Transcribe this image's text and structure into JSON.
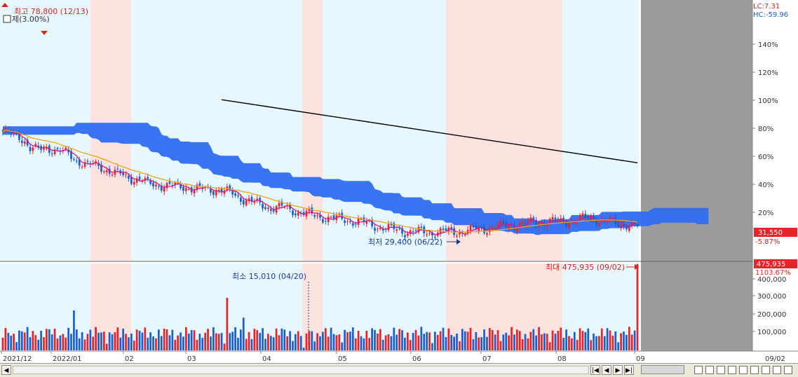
{
  "chart_data": {
    "type": "candlestick",
    "price_scale": "percent",
    "y_ticks_price": [
      "140%",
      "120%",
      "100%",
      "80%",
      "60%",
      "40%",
      "20%"
    ],
    "y_ticks_volume": [
      "400,000",
      "300,000",
      "200,000",
      "100,000"
    ],
    "x_ticks": [
      "2021/12",
      "2022/01",
      "02",
      "03",
      "04",
      "05",
      "06",
      "07",
      "08",
      "09"
    ],
    "x_end_label": "09/02",
    "lc_label": "LC:7.31",
    "hc_label": "HC:-59.96",
    "high_annotation": "최고 78,800 (12/13)",
    "top_left_annotation": "제(3.00%)",
    "low_annotation": "최저 29,400 (06/22)",
    "min_volume_annotation": "최소 15,010 (04/20)",
    "max_volume_annotation": "최대 475,935 (09/02)",
    "last_price_tag": "31,550",
    "last_price_pct": "-5.87%",
    "last_volume_tag": "475,935",
    "last_volume_pct": "1103.67%",
    "close_path": [
      [
        0,
        72
      ],
      [
        3,
        70
      ],
      [
        6,
        69
      ],
      [
        8,
        66
      ],
      [
        10,
        60
      ],
      [
        13,
        59
      ],
      [
        16,
        61
      ],
      [
        18,
        60
      ],
      [
        21,
        58
      ],
      [
        24,
        56
      ],
      [
        27,
        52
      ],
      [
        31,
        48
      ],
      [
        34,
        48
      ],
      [
        36,
        47
      ],
      [
        40,
        43
      ],
      [
        44,
        41
      ],
      [
        47,
        39
      ],
      [
        50,
        38
      ],
      [
        53,
        35
      ],
      [
        58,
        34
      ],
      [
        63,
        33
      ],
      [
        67,
        33
      ],
      [
        70,
        31
      ],
      [
        74,
        31
      ],
      [
        78,
        31
      ],
      [
        84,
        28
      ],
      [
        88,
        24
      ],
      [
        91,
        22
      ],
      [
        94,
        20
      ],
      [
        98,
        18
      ],
      [
        102,
        18
      ],
      [
        106,
        16
      ],
      [
        110,
        14
      ],
      [
        114,
        12
      ],
      [
        118,
        11
      ],
      [
        122,
        10
      ],
      [
        126,
        9
      ],
      [
        130,
        8
      ],
      [
        134,
        6
      ],
      [
        138,
        4
      ],
      [
        141,
        3
      ],
      [
        144,
        2
      ],
      [
        147,
        1
      ],
      [
        150,
        1
      ],
      [
        153,
        0.5
      ],
      [
        156,
        0
      ],
      [
        160,
        1
      ],
      [
        164,
        0.5
      ],
      [
        168,
        1
      ],
      [
        172,
        2
      ],
      [
        176,
        3
      ],
      [
        180,
        4
      ],
      [
        184,
        5
      ],
      [
        188,
        6
      ],
      [
        192,
        7
      ],
      [
        196,
        8
      ],
      [
        200,
        8
      ],
      [
        204,
        8
      ],
      [
        208,
        9
      ],
      [
        212,
        10
      ],
      [
        216,
        11
      ],
      [
        220,
        8
      ],
      [
        224,
        7
      ],
      [
        228,
        6
      ],
      [
        232,
        4
      ]
    ],
    "series": [
      {
        "name": "",
        "color": "#d4198a"
      },
      {
        "name": "",
        "color": "#e8a317"
      },
      {
        "name": "",
        "color": "#000000"
      }
    ],
    "colors": {
      "up": "#e8232a",
      "down": "#1a5fd1",
      "cloud": "#2f6df2",
      "bg_blue": "#e6f8fd",
      "bg_pink": "#fde3df",
      "future": "#9c9c9c"
    }
  }
}
